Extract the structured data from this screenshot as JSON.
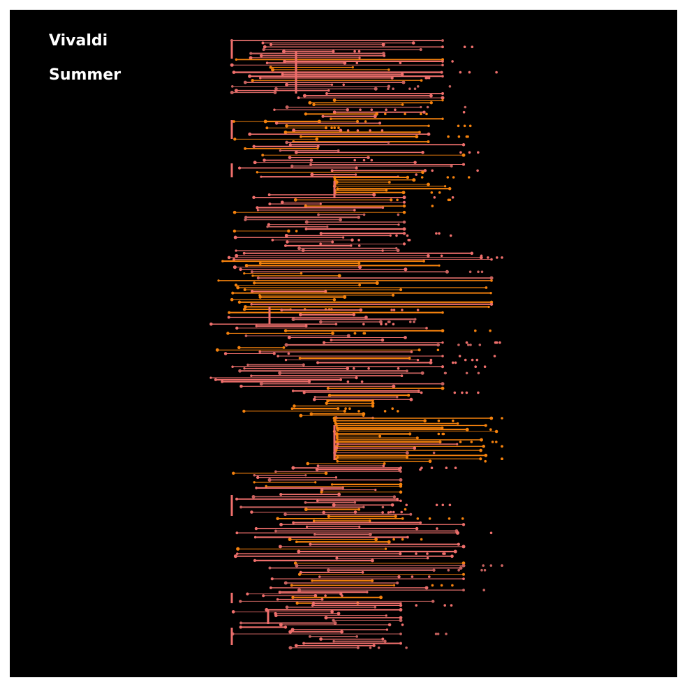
{
  "labels": {
    "composer": "Vivaldi",
    "piece": "Summer"
  },
  "colors": {
    "background": "#000000",
    "frame": "#ffffff",
    "salmon": "#ef6f6c",
    "salmon_dark": "#c8625f",
    "orange": "#f5820d",
    "text": "#ffffff"
  },
  "artwork": {
    "description_icon": "note-bar-sunburst",
    "seed": 7
  }
}
